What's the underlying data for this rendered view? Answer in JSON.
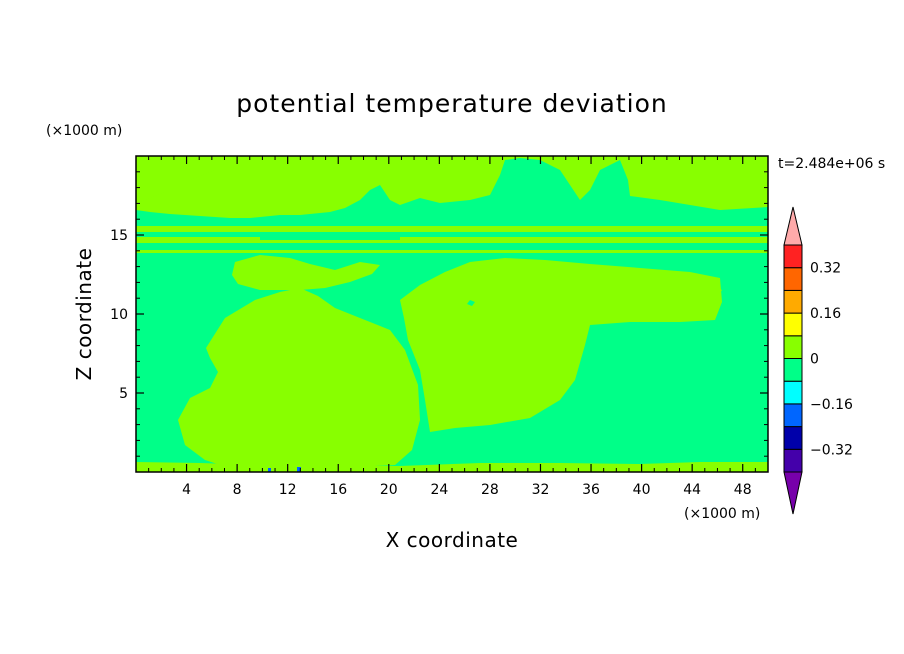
{
  "chart_data": {
    "type": "heatmap",
    "title": "potential temperature deviation",
    "xlabel": "X coordinate",
    "ylabel": "Z coordinate",
    "x_unit": "(×1000 m)",
    "y_unit": "(×1000 m)",
    "time_label": "t=2.484e+06 s",
    "xlim": [
      0,
      50
    ],
    "ylim": [
      0,
      20
    ],
    "x_ticks": [
      "4",
      "8",
      "12",
      "16",
      "20",
      "24",
      "28",
      "32",
      "36",
      "40",
      "44",
      "48"
    ],
    "y_ticks": [
      "5",
      "10",
      "15"
    ],
    "colorbar": {
      "levels": [
        -0.4,
        -0.32,
        -0.24,
        -0.16,
        -0.08,
        0,
        0.08,
        0.16,
        0.24,
        0.32,
        0.4
      ],
      "tick_labels": [
        "0.32",
        "0.16",
        "0",
        "−0.16",
        "−0.32"
      ],
      "tick_values": [
        0.32,
        0.16,
        0,
        -0.16,
        -0.32
      ],
      "colors": [
        "#4400aa",
        "#0000aa",
        "#0066ff",
        "#00ffff",
        "#00ff88",
        "#88ff00",
        "#ffff00",
        "#ffaa00",
        "#ff6600",
        "#ff2222"
      ],
      "under_color": "#7700aa",
      "over_color": "#ffaaaa"
    },
    "field_colors": {
      "negative_band": "#00ff88",
      "positive_band": "#88ff00",
      "spot": "#0066ff"
    }
  }
}
